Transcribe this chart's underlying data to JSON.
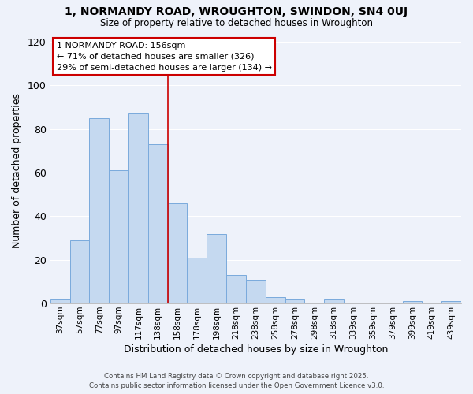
{
  "title": "1, NORMANDY ROAD, WROUGHTON, SWINDON, SN4 0UJ",
  "subtitle": "Size of property relative to detached houses in Wroughton",
  "xlabel": "Distribution of detached houses by size in Wroughton",
  "ylabel": "Number of detached properties",
  "bar_labels": [
    "37sqm",
    "57sqm",
    "77sqm",
    "97sqm",
    "117sqm",
    "138sqm",
    "158sqm",
    "178sqm",
    "198sqm",
    "218sqm",
    "238sqm",
    "258sqm",
    "278sqm",
    "298sqm",
    "318sqm",
    "339sqm",
    "359sqm",
    "379sqm",
    "399sqm",
    "419sqm",
    "439sqm"
  ],
  "bar_values": [
    2,
    29,
    85,
    61,
    87,
    73,
    46,
    21,
    32,
    13,
    11,
    3,
    2,
    0,
    2,
    0,
    0,
    0,
    1,
    0,
    1
  ],
  "bar_color": "#c5d9f0",
  "bar_edge_color": "#7aaadc",
  "vline_x_index": 6,
  "vline_color": "#cc0000",
  "ylim": [
    0,
    122
  ],
  "yticks": [
    0,
    20,
    40,
    60,
    80,
    100,
    120
  ],
  "annotation_title": "1 NORMANDY ROAD: 156sqm",
  "annotation_line1": "← 71% of detached houses are smaller (326)",
  "annotation_line2": "29% of semi-detached houses are larger (134) →",
  "annotation_box_color": "#ffffff",
  "annotation_box_edge": "#cc0000",
  "footer_line1": "Contains HM Land Registry data © Crown copyright and database right 2025.",
  "footer_line2": "Contains public sector information licensed under the Open Government Licence v3.0.",
  "background_color": "#eef2fa",
  "grid_color": "#ffffff",
  "figsize": [
    6.0,
    5.0
  ],
  "dpi": 100
}
